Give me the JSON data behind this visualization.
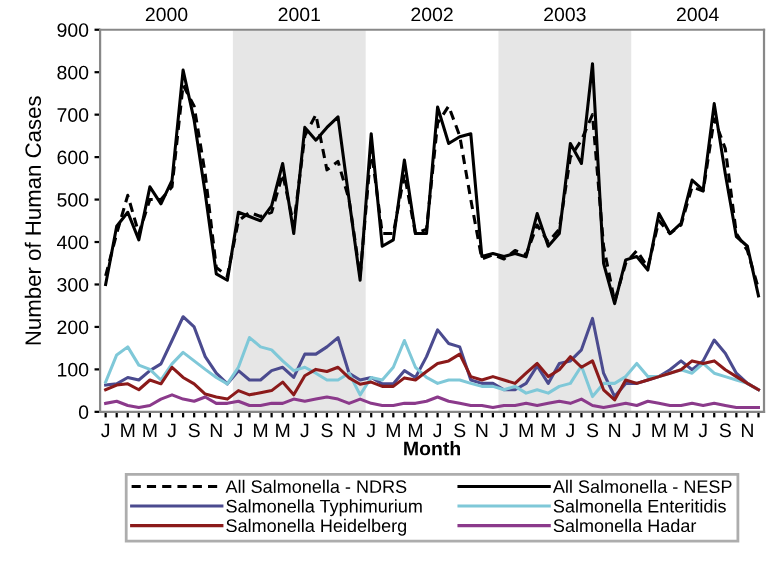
{
  "chart_data": {
    "type": "line",
    "xlabel": "Month",
    "ylabel": "Number of Human Cases",
    "categories": [
      "J",
      null,
      "M",
      null,
      "M",
      null,
      "J",
      null,
      "S",
      null,
      "N",
      null,
      "J",
      null,
      "M",
      null,
      "M",
      null,
      "J",
      null,
      "S",
      null,
      "N",
      null,
      "J",
      null,
      "M",
      null,
      "M",
      null,
      "J",
      null,
      "S",
      null,
      "N",
      null,
      "J",
      null,
      "M",
      null,
      "M",
      null,
      "J",
      null,
      "S",
      null,
      "N",
      null,
      "J",
      null,
      "M",
      null,
      "M",
      null,
      "J",
      null,
      "S",
      null,
      "N",
      null
    ],
    "ylim": [
      0,
      900
    ],
    "yticks": [
      0,
      100,
      200,
      300,
      400,
      500,
      600,
      700,
      800,
      900
    ],
    "annotations": [
      "2000",
      "2001",
      "2002",
      "2003",
      "2004"
    ],
    "grid": false,
    "legend": "bottom",
    "series": [
      {
        "name": "All Salmonella - NDRS",
        "color": "#000000",
        "line_style": "dashed",
        "values": [
          320,
          420,
          510,
          420,
          500,
          500,
          530,
          770,
          720,
          560,
          340,
          320,
          450,
          470,
          460,
          470,
          560,
          440,
          650,
          700,
          570,
          590,
          500,
          320,
          620,
          420,
          420,
          560,
          420,
          430,
          680,
          720,
          650,
          500,
          360,
          370,
          360,
          380,
          370,
          440,
          400,
          430,
          600,
          640,
          700,
          390,
          260,
          350,
          380,
          340,
          450,
          420,
          440,
          530,
          520,
          690,
          620,
          420,
          380,
          290
        ]
      },
      {
        "name": "All Salmonella - NESP",
        "color": "#000000",
        "line_style": "solid",
        "values": [
          300,
          437,
          470,
          405,
          530,
          490,
          545,
          805,
          687,
          515,
          325,
          310,
          470,
          460,
          450,
          485,
          585,
          420,
          670,
          640,
          670,
          695,
          500,
          310,
          655,
          390,
          405,
          593,
          420,
          420,
          718,
          632,
          648,
          655,
          366,
          373,
          366,
          373,
          365,
          467,
          390,
          420,
          632,
          585,
          820,
          350,
          255,
          358,
          366,
          334,
          467,
          420,
          444,
          546,
          522,
          726,
          561,
          413,
          390,
          273
        ]
      },
      {
        "name": "Salmonella Typhimurium",
        "color": "#4b4b8f",
        "line_style": "solid",
        "values": [
          63,
          66,
          81,
          75,
          97,
          113,
          168,
          224,
          200,
          130,
          91,
          66,
          97,
          75,
          75,
          97,
          105,
          81,
          136,
          136,
          153,
          175,
          91,
          75,
          81,
          66,
          66,
          97,
          81,
          130,
          193,
          161,
          153,
          75,
          67,
          67,
          52,
          52,
          67,
          108,
          67,
          114,
          120,
          146,
          220,
          91,
          36,
          67,
          67,
          75,
          83,
          99,
          120,
          99,
          120,
          169,
          138,
          91,
          67,
          52
        ]
      },
      {
        "name": "Salmonella Enteritidis",
        "color": "#7fc8d8",
        "line_style": "solid",
        "values": [
          70,
          134,
          153,
          110,
          100,
          75,
          113,
          140,
          120,
          100,
          81,
          66,
          105,
          175,
          153,
          146,
          120,
          97,
          105,
          91,
          75,
          75,
          91,
          40,
          81,
          75,
          105,
          168,
          105,
          81,
          67,
          75,
          75,
          67,
          60,
          60,
          52,
          60,
          44,
          52,
          44,
          60,
          67,
          108,
          36,
          67,
          67,
          83,
          114,
          83,
          83,
          91,
          99,
          91,
          114,
          91,
          83,
          75,
          67,
          52
        ]
      },
      {
        "name": "Salmonella Heidelberg",
        "color": "#8b1a1a",
        "line_style": "solid",
        "values": [
          52,
          63,
          66,
          52,
          75,
          66,
          105,
          81,
          66,
          42,
          35,
          30,
          50,
          40,
          45,
          50,
          70,
          40,
          85,
          100,
          95,
          105,
          80,
          65,
          70,
          60,
          60,
          80,
          75,
          95,
          114,
          120,
          136,
          83,
          75,
          83,
          75,
          67,
          91,
          114,
          83,
          99,
          130,
          105,
          120,
          52,
          28,
          75,
          67,
          75,
          83,
          91,
          99,
          120,
          114,
          120,
          99,
          83,
          67,
          52
        ]
      },
      {
        "name": "Salmonella Hadar",
        "color": "#8b3a8b",
        "line_style": "solid",
        "values": [
          20,
          25,
          15,
          10,
          15,
          30,
          40,
          30,
          25,
          35,
          20,
          20,
          25,
          15,
          15,
          20,
          20,
          30,
          25,
          30,
          35,
          30,
          20,
          30,
          20,
          15,
          15,
          20,
          20,
          25,
          35,
          25,
          20,
          15,
          15,
          10,
          15,
          15,
          20,
          15,
          20,
          25,
          20,
          30,
          15,
          10,
          15,
          20,
          15,
          25,
          20,
          15,
          15,
          20,
          15,
          20,
          15,
          10,
          10,
          10
        ]
      }
    ]
  }
}
